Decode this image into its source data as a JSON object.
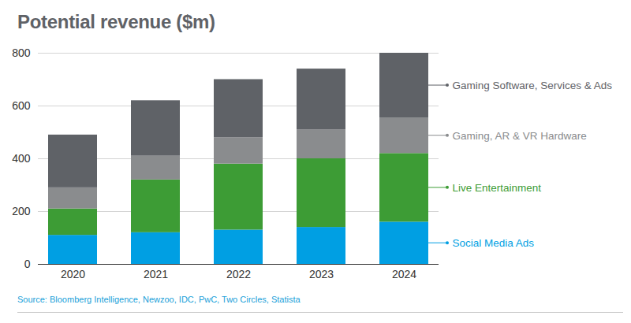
{
  "chart_data": {
    "type": "bar",
    "title": "Potential revenue ($m)",
    "source": "Source: Bloomberg Intelligence, Newzoo, IDC, PwC, Two Circles, Statista",
    "categories": [
      "2020",
      "2021",
      "2022",
      "2023",
      "2024"
    ],
    "series": [
      {
        "name": "Social Media Ads",
        "color": "#009fe3",
        "values": [
          110,
          120,
          130,
          140,
          160
        ]
      },
      {
        "name": "Live Entertainment",
        "color": "#3d9c35",
        "values": [
          100,
          200,
          250,
          260,
          260
        ]
      },
      {
        "name": "Gaming, AR & VR Hardware",
        "color": "#8a8c8e",
        "values": [
          80,
          90,
          100,
          110,
          135
        ]
      },
      {
        "name": "Gaming Software, Services & Ads",
        "color": "#5f6267",
        "values": [
          200,
          210,
          220,
          230,
          245
        ]
      }
    ],
    "ylim": [
      0,
      800
    ],
    "yticks": [
      0,
      200,
      400,
      600,
      800
    ],
    "grid": true,
    "stacked": true,
    "legend": "right"
  }
}
